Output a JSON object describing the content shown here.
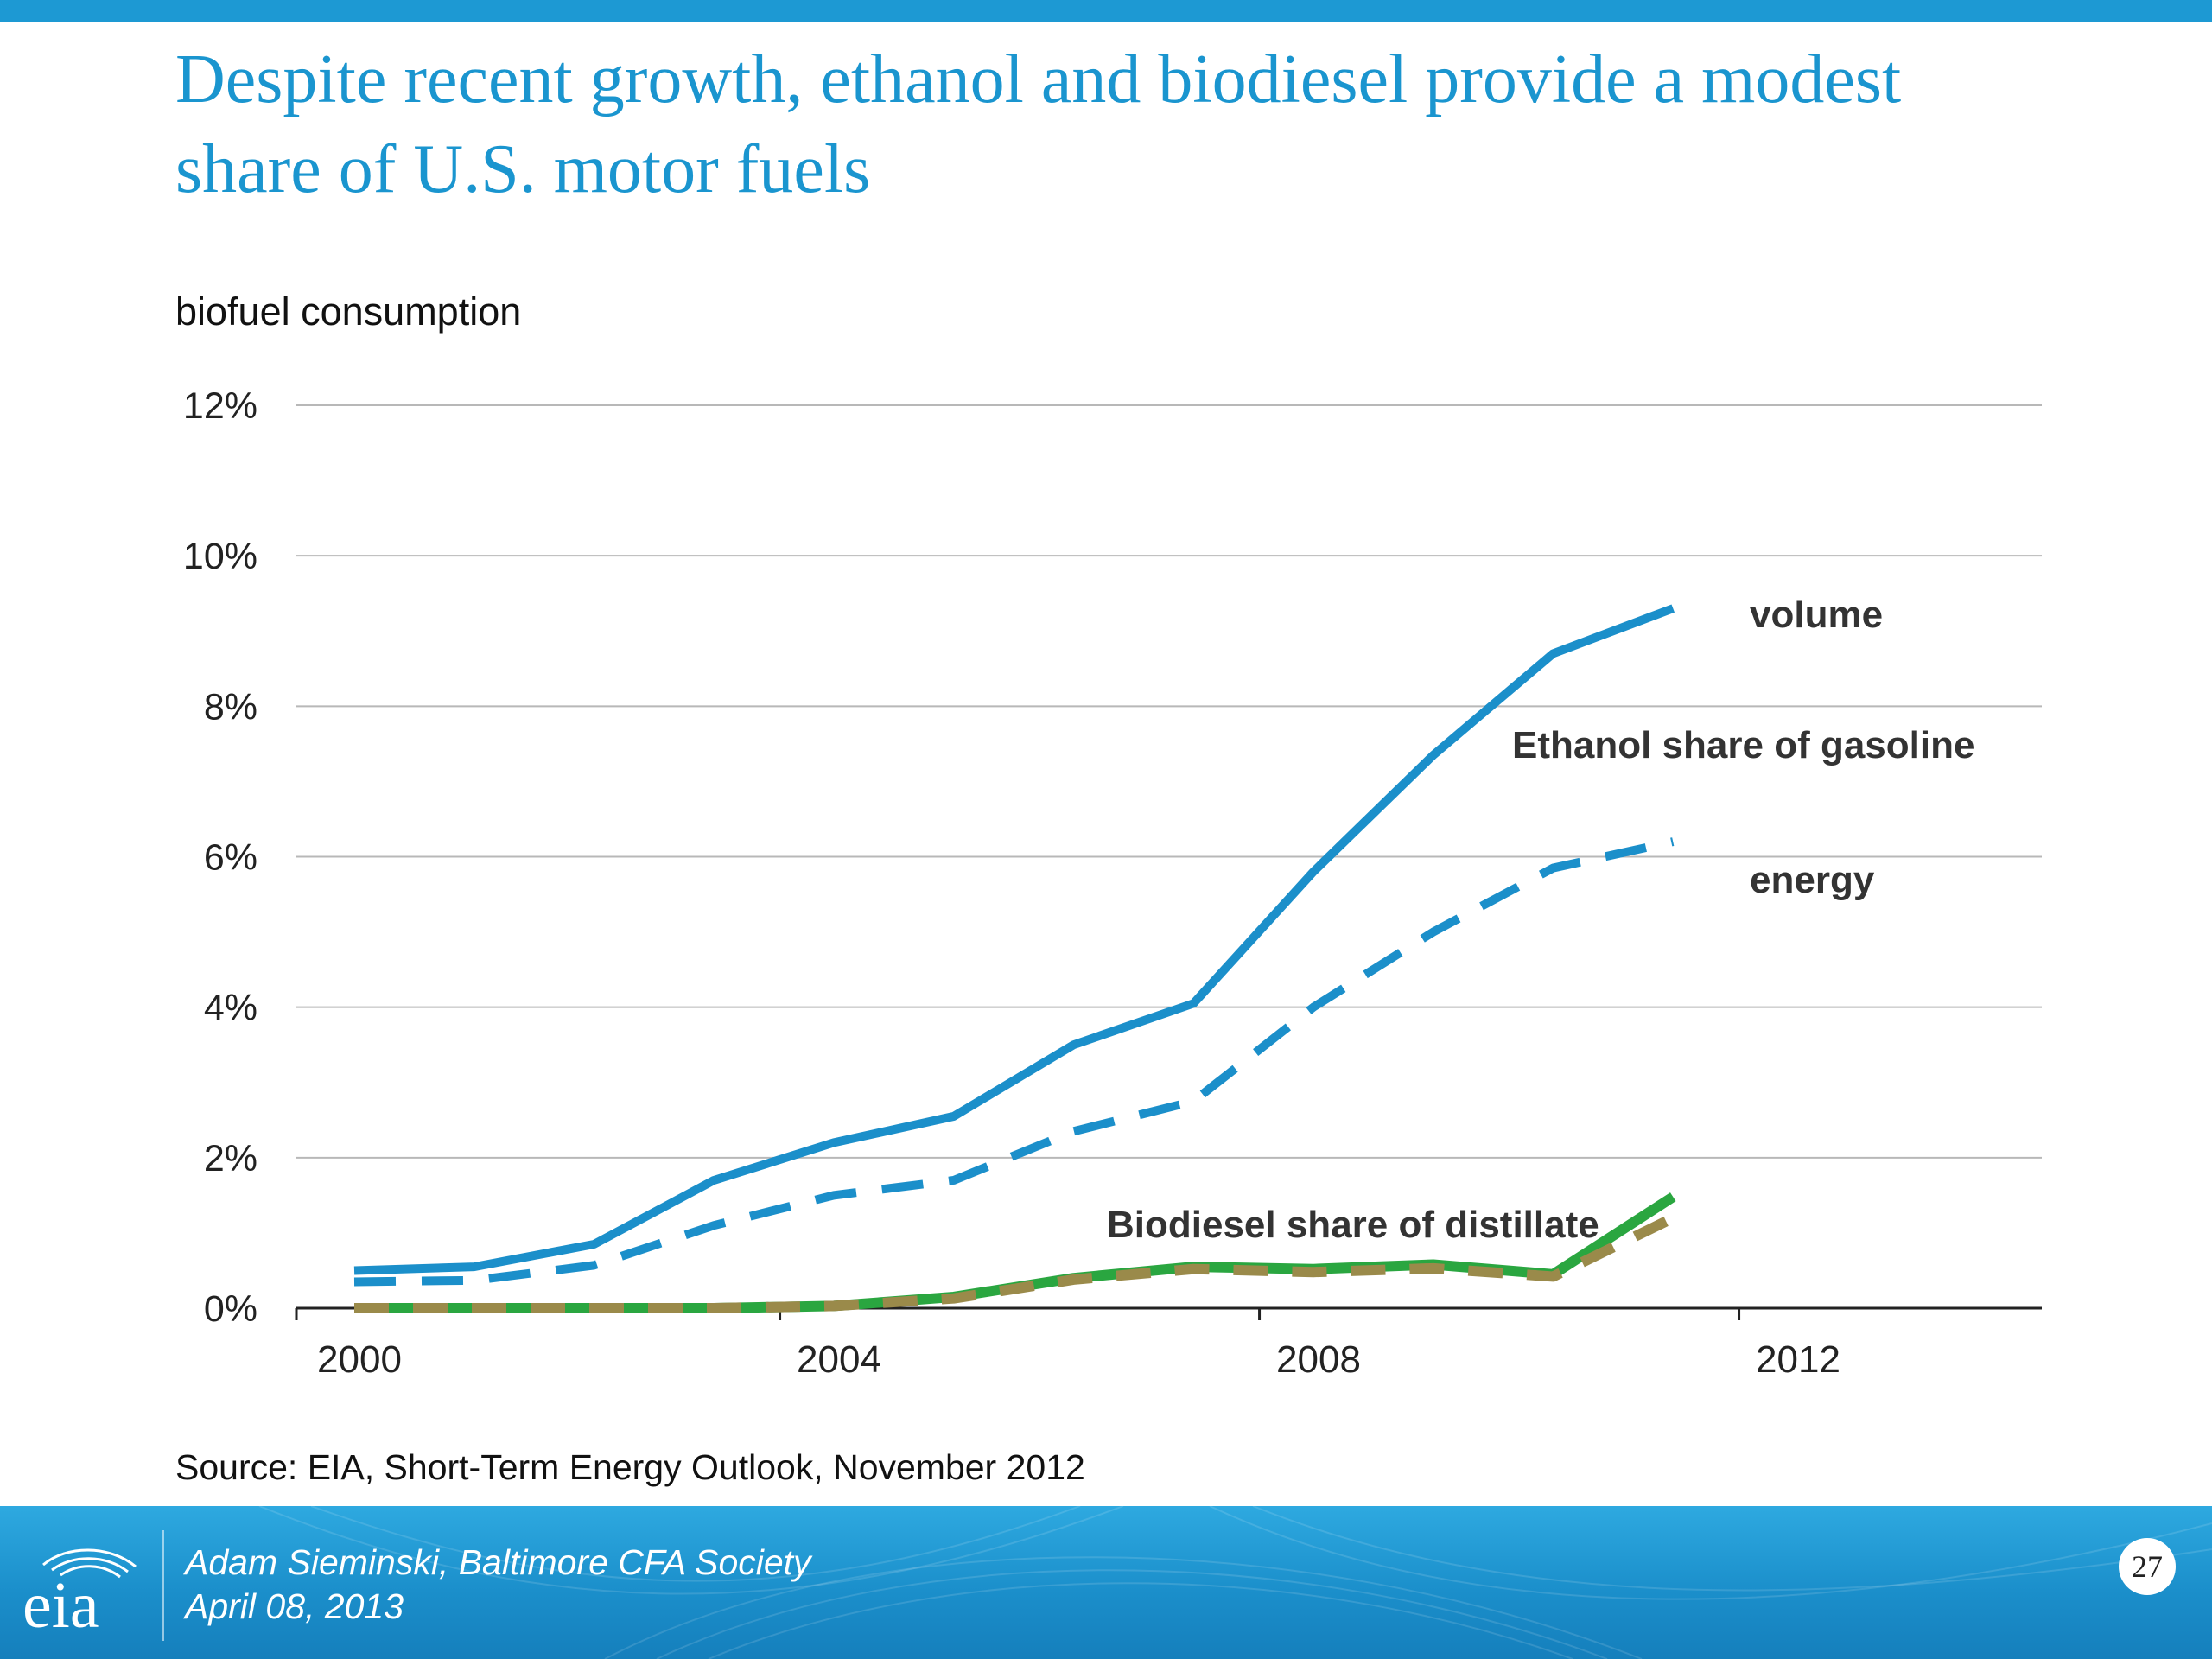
{
  "title": "Despite recent growth, ethanol and biodiesel  provide a modest\nshare of U.S. motor fuels",
  "source": "Source:  EIA, Short-Term Energy Outlook, November 2012",
  "footer": {
    "author": "Adam Sieminski, Baltimore CFA Society",
    "date": "April 08, 2013",
    "page_number": "27",
    "logo_text": "eia"
  },
  "colors": {
    "accent": "#1d99d3",
    "ethanol": "#1b8fca",
    "biodiesel": "#2aa640",
    "biodiesel_dash": "#9a8a4a"
  },
  "chart_data": {
    "type": "line",
    "subtitle": "biofuel consumption",
    "ylim": [
      0,
      12
    ],
    "xlim": [
      2000,
      2014
    ],
    "y_ticks": [
      "0%",
      "2%",
      "4%",
      "6%",
      "8%",
      "10%",
      "12%"
    ],
    "x_ticks": [
      "2000",
      "2004",
      "2008",
      "2012"
    ],
    "grid": true,
    "annotations": {
      "ethanol_group": "Ethanol share of gasoline",
      "volume": "volume",
      "energy": "energy",
      "biodiesel": "Biodiesel share of distillate"
    },
    "x": [
      2000,
      2001,
      2002,
      2003,
      2004,
      2005,
      2006,
      2007,
      2008,
      2009,
      2010,
      2011
    ],
    "series": [
      {
        "name": "volume",
        "style": "solid",
        "color": "#1b8fca",
        "values": [
          0.5,
          0.55,
          0.85,
          1.7,
          2.2,
          2.55,
          3.5,
          4.05,
          5.8,
          7.35,
          8.7,
          9.3
        ]
      },
      {
        "name": "energy",
        "style": "dashed",
        "color": "#1b8fca",
        "values": [
          0.35,
          0.37,
          0.57,
          1.1,
          1.5,
          1.7,
          2.35,
          2.75,
          4.0,
          5.0,
          5.85,
          6.2
        ]
      },
      {
        "name": "Biodiesel share of distillate",
        "style": "solid",
        "color": "#2aa640",
        "values": [
          0.0,
          0.0,
          0.0,
          0.0,
          0.03,
          0.15,
          0.4,
          0.55,
          0.52,
          0.58,
          0.45,
          1.48
        ]
      },
      {
        "name": "",
        "style": "dashed",
        "color": "#9a8a4a",
        "values": [
          0.0,
          0.0,
          0.0,
          0.0,
          0.03,
          0.13,
          0.38,
          0.52,
          0.48,
          0.53,
          0.42,
          1.2
        ]
      }
    ]
  }
}
